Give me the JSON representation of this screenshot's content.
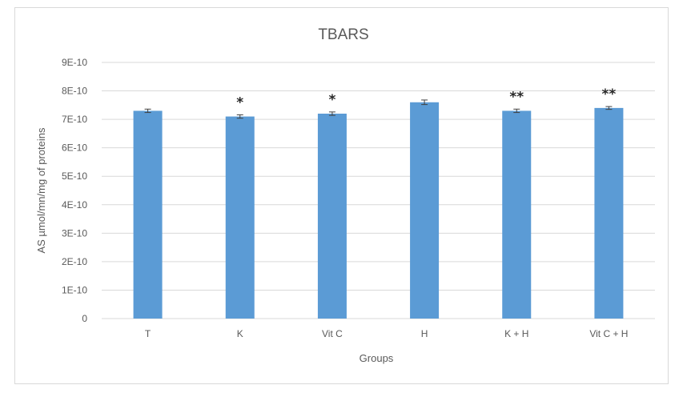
{
  "chart_data": {
    "type": "bar",
    "title": "TBARS",
    "xlabel": "Groups",
    "ylabel": "AS µmol/mn/mg of proteins",
    "categories": [
      "T",
      "K",
      "Vit C",
      "H",
      "K + H",
      "Vit C + H"
    ],
    "values": [
      7.3e-10,
      7.1e-10,
      7.2e-10,
      7.6e-10,
      7.3e-10,
      7.4e-10
    ],
    "error": [
      6e-12,
      6e-12,
      6e-12,
      8e-12,
      6e-12,
      5e-12
    ],
    "annotations": [
      "",
      "*",
      "*",
      "",
      "**",
      "**"
    ],
    "ylim": [
      0,
      9e-10
    ],
    "yticks": [
      0,
      1e-10,
      2e-10,
      3e-10,
      4e-10,
      5e-10,
      6e-10,
      7e-10,
      8e-10,
      9e-10
    ],
    "ytick_labels": [
      "0",
      "1E-10",
      "2E-10",
      "3E-10",
      "4E-10",
      "5E-10",
      "6E-10",
      "7E-10",
      "8E-10",
      "9E-10"
    ],
    "grid": true,
    "legend": "none",
    "colors": {
      "bar": "#5b9bd5",
      "grid": "#d9d9d9",
      "text": "#595959",
      "error_bar": "#404040"
    }
  }
}
